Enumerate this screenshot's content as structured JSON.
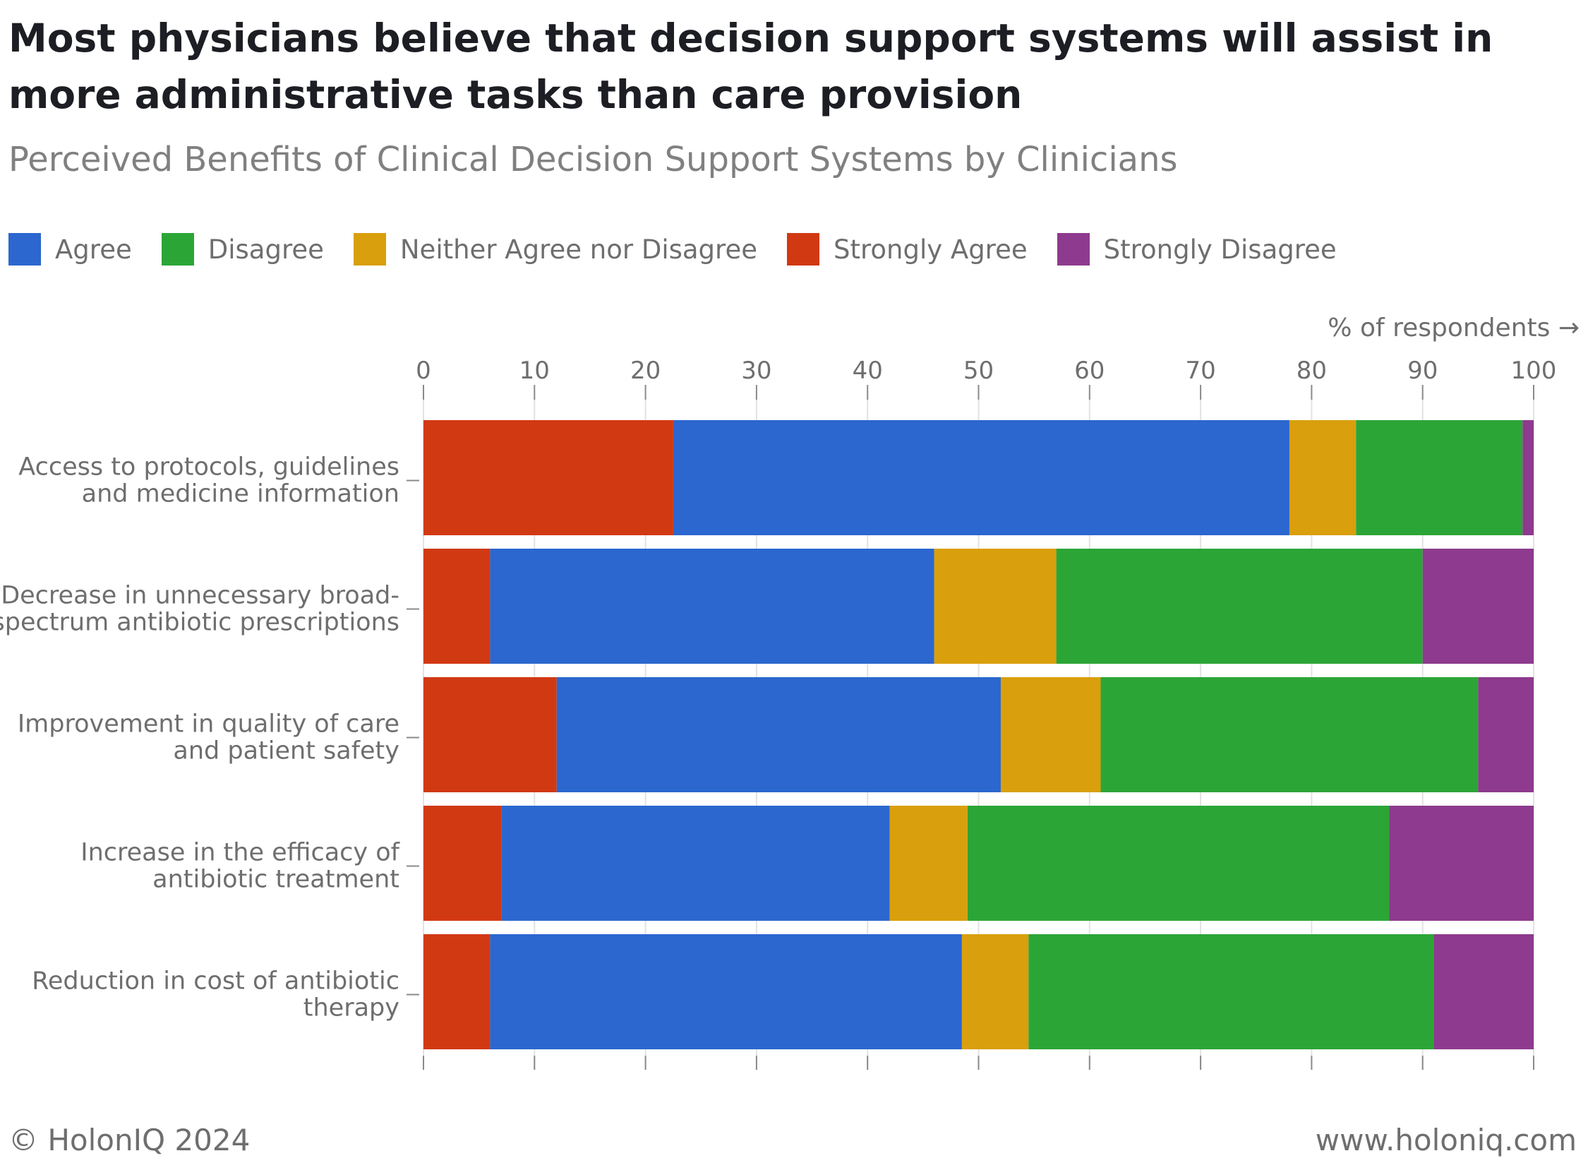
{
  "title": "Most physicians believe that decision support systems will assist in more administrative tasks than care provision",
  "subtitle": "Perceived Benefits of Clinical Decision Support Systems by Clinicians",
  "footer": {
    "copyright": "© HolonIQ 2024",
    "website": "www.holoniq.com"
  },
  "chart_data": {
    "type": "bar",
    "orientation": "horizontal",
    "stacked": true,
    "xlabel": "% of respondents →",
    "xlim": [
      0,
      100
    ],
    "xticks": [
      "0",
      "10",
      "20",
      "30",
      "40",
      "50",
      "60",
      "70",
      "80",
      "90",
      "100"
    ],
    "grid": true,
    "legend_position": "top-left",
    "categories": [
      [
        "Access to protocols, guidelines",
        "and medicine information"
      ],
      [
        "Decrease in unnecessary broad-",
        "spectrum antibiotic prescriptions"
      ],
      [
        "Improvement in quality of care",
        "and patient safety"
      ],
      [
        "Increase in the efficacy of",
        "antibiotic treatment"
      ],
      [
        "Reduction in cost of antibiotic",
        "therapy"
      ]
    ],
    "stack_order": [
      "Strongly Agree",
      "Agree",
      "Neither Agree nor Disagree",
      "Disagree",
      "Strongly Disagree"
    ],
    "legend_order": [
      "Agree",
      "Disagree",
      "Neither Agree nor Disagree",
      "Strongly Agree",
      "Strongly Disagree"
    ],
    "colors": {
      "Agree": "#2b67cf",
      "Disagree": "#2ca537",
      "Neither Agree nor Disagree": "#d99f0c",
      "Strongly Agree": "#d13913",
      "Strongly Disagree": "#8e3a8e"
    },
    "series": [
      {
        "name": "Strongly Agree",
        "values": [
          22.5,
          6.0,
          12.0,
          7.0,
          6.0
        ]
      },
      {
        "name": "Agree",
        "values": [
          55.5,
          40.0,
          40.0,
          35.0,
          42.5
        ]
      },
      {
        "name": "Neither Agree nor Disagree",
        "values": [
          6.0,
          11.0,
          9.0,
          7.0,
          6.0
        ]
      },
      {
        "name": "Disagree",
        "values": [
          15.0,
          33.0,
          34.0,
          38.0,
          36.5
        ]
      },
      {
        "name": "Strongly Disagree",
        "values": [
          1.0,
          10.0,
          5.0,
          13.0,
          9.0
        ]
      }
    ]
  }
}
